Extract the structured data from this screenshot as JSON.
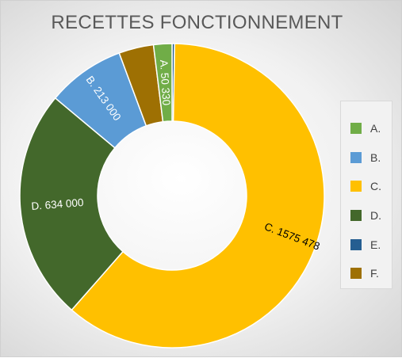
{
  "chart_data": {
    "type": "pie",
    "title": "RECETTES FONCTIONNEMENT",
    "categories": [
      "A.",
      "B.",
      "C.",
      "D.",
      "E.",
      "F."
    ],
    "values": [
      50330,
      213000,
      1575478,
      634000,
      7000,
      95000
    ],
    "value_labels": [
      "A. 50 330",
      "B. 213 000",
      "C. 1575 478",
      "D. 634 000",
      "",
      ""
    ],
    "colors": [
      "#70AD47",
      "#5B9BD5",
      "#FFC000",
      "#43682B",
      "#255E91",
      "#9E7003"
    ],
    "slice_order": [
      "E.",
      "C.",
      "D.",
      "B.",
      "F.",
      "A."
    ],
    "legend_position": "right",
    "donut": true
  }
}
